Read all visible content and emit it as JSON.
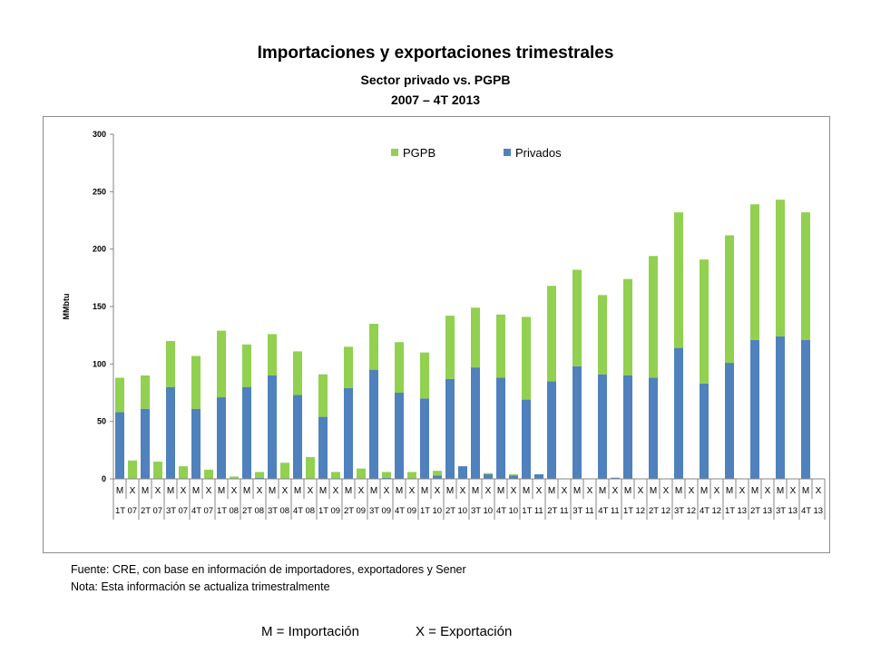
{
  "title": "Importaciones y exportaciones trimestrales",
  "subtitle": "Sector privado vs. PGPB",
  "period": "2007 – 4T 2013",
  "source_note": "Fuente: CRE, con base en información de importadores, exportadores y Sener",
  "update_note": "Nota: Esta información se actualiza trimestralmente",
  "legend_import": "M = Importación",
  "legend_export": "X = Exportación",
  "colors": {
    "pgpb": "#92d050",
    "privados": "#4f81bd",
    "axis": "#868686"
  },
  "chart_data": {
    "type": "bar",
    "stacked": true,
    "ylabel": "MMbtu",
    "ylim": [
      0,
      300
    ],
    "yticks": [
      0,
      50,
      100,
      150,
      200,
      250,
      300
    ],
    "legend": [
      "PGPB",
      "Privados"
    ],
    "legend_position": "top-center",
    "categories": [
      "M",
      "X",
      "M",
      "X",
      "M",
      "X",
      "M",
      "X",
      "M",
      "X",
      "M",
      "X",
      "M",
      "X",
      "M",
      "X",
      "M",
      "X",
      "M",
      "X",
      "M",
      "X",
      "M",
      "X",
      "M",
      "X",
      "M",
      "X",
      "M",
      "X",
      "M",
      "X",
      "M",
      "X",
      "M",
      "X",
      "M",
      "X",
      "M",
      "X",
      "M",
      "X",
      "M",
      "X",
      "M",
      "X",
      "M",
      "X",
      "M",
      "X",
      "M",
      "X",
      "M",
      "X",
      "M",
      "X"
    ],
    "quarters": [
      "1T 07",
      "2T 07",
      "3T 07",
      "4T 07",
      "1T 08",
      "2T 08",
      "3T 08",
      "4T 08",
      "1T 09",
      "2T 09",
      "3T 09",
      "4T 09",
      "1T 10",
      "2T 10",
      "3T 10",
      "4T 10",
      "1T 11",
      "2T 11",
      "3T 11",
      "4T 11",
      "1T 12",
      "2T 12",
      "3T 12",
      "4T 12",
      "1T 13",
      "2T 13",
      "3T 13",
      "4T 13"
    ],
    "series": [
      {
        "name": "Privados",
        "values": [
          58,
          0,
          61,
          0,
          80,
          0,
          61,
          0,
          71,
          0,
          80,
          1,
          90,
          0,
          73,
          0,
          54,
          0,
          79,
          0,
          95,
          1,
          75,
          0,
          70,
          3,
          87,
          11,
          97,
          4,
          88,
          3,
          69,
          4,
          85,
          0,
          98,
          0,
          91,
          1,
          90,
          0,
          88,
          0,
          114,
          0,
          83,
          0,
          101,
          0,
          121,
          0,
          124,
          0,
          121,
          0
        ]
      },
      {
        "name": "PGPB",
        "values": [
          30,
          16,
          29,
          15,
          40,
          11,
          46,
          8,
          58,
          2,
          37,
          5,
          36,
          14,
          38,
          19,
          37,
          6,
          36,
          9,
          40,
          5,
          44,
          6,
          40,
          4,
          55,
          0,
          52,
          1,
          55,
          1,
          72,
          0,
          83,
          0,
          84,
          0,
          69,
          0,
          84,
          0,
          106,
          0,
          118,
          0,
          108,
          0,
          111,
          0,
          118,
          0,
          119,
          0,
          111,
          0
        ]
      }
    ]
  }
}
